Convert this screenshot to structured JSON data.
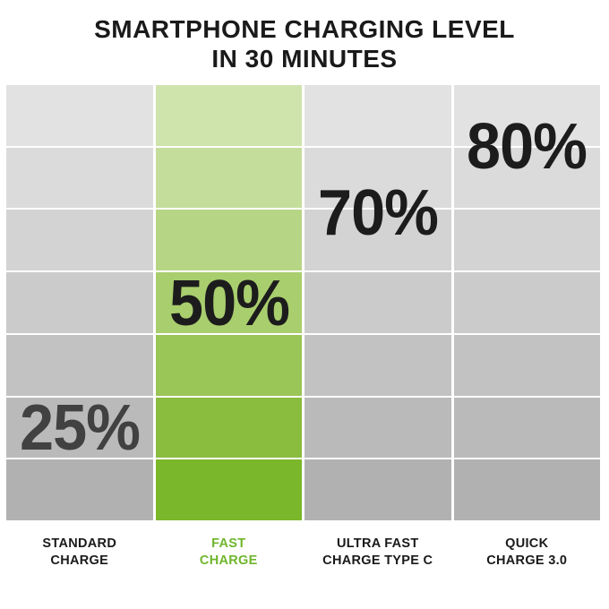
{
  "title": {
    "line1": "SMARTPHONE CHARGING LEVEL",
    "line2": "IN 30 MINUTES"
  },
  "colors": {
    "background": "#ffffff",
    "title_text": "#1a1a1a",
    "accent_green": "#6fb62c",
    "separator": "#ffffff"
  },
  "chart_data": {
    "type": "bar",
    "title": "SMARTPHONE CHARGING LEVEL IN 30 MINUTES",
    "unit": "%",
    "categories": [
      "STANDARD CHARGE",
      "FAST CHARGE",
      "ULTRA FAST CHARGE TYPE C",
      "QUICK CHARGE 3.0"
    ],
    "values": [
      25,
      50,
      70,
      80
    ],
    "highlighted_category": "FAST CHARGE",
    "ylim": [
      0,
      100
    ],
    "grid_rows": 7,
    "legend": "none",
    "gray_shades": [
      "#e2e2e2",
      "#dbdbdb",
      "#d3d3d3",
      "#cbcbcb",
      "#c2c2c2",
      "#bababa",
      "#b1b1b1"
    ],
    "green_shades": [
      "#cfe3ac",
      "#c5dd9b",
      "#b7d685",
      "#a9ce6e",
      "#9ac557",
      "#8abc3e",
      "#7bb72a"
    ],
    "columns": [
      {
        "label_line1": "STANDARD",
        "label_line2": "CHARGE",
        "value": 25,
        "value_label": "25%",
        "value_color": "#414141",
        "label_color": "#1a1a1a",
        "highlight": false
      },
      {
        "label_line1": "FAST",
        "label_line2": "CHARGE",
        "value": 50,
        "value_label": "50%",
        "value_color": "#1c1c1c",
        "label_color": "#6fb62c",
        "highlight": true
      },
      {
        "label_line1": "ULTRA FAST",
        "label_line2": "CHARGE TYPE C",
        "value": 70,
        "value_label": "70%",
        "value_color": "#1c1c1c",
        "label_color": "#1a1a1a",
        "highlight": false
      },
      {
        "label_line1": "QUICK",
        "label_line2": "CHARGE 3.0",
        "value": 80,
        "value_label": "80%",
        "value_color": "#1c1c1c",
        "label_color": "#1a1a1a",
        "highlight": false
      }
    ]
  }
}
